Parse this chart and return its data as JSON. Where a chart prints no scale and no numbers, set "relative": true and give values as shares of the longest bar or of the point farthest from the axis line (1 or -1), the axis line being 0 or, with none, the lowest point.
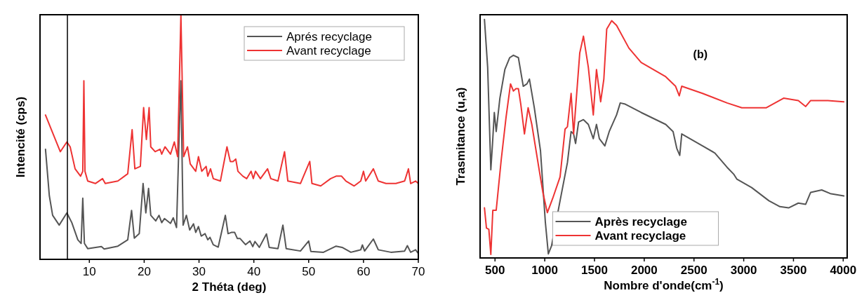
{
  "chart_data": [
    {
      "type": "line",
      "relative": true,
      "xlabel": "2 Théta (deg)",
      "ylabel": "Intencité (cps)",
      "xlim": [
        1,
        70
      ],
      "xticks": [
        10,
        20,
        30,
        40,
        50,
        60,
        70
      ],
      "legend": "top right",
      "grid": false,
      "ref_lines": [
        {
          "axis": "x",
          "value": 6,
          "color": "#000000"
        }
      ],
      "series": [
        {
          "name": "Aprés recyclage",
          "color": "#555555",
          "x": [
            2.0,
            2.7,
            3.3,
            4.5,
            5.9,
            6.8,
            7.9,
            8.5,
            8.8,
            9.1,
            9.7,
            12.2,
            12.7,
            15.2,
            17.0,
            17.7,
            18.2,
            19.1,
            19.8,
            20.3,
            20.8,
            21.2,
            22.1,
            22.7,
            23.2,
            23.7,
            24.8,
            25.3,
            25.9,
            26.5,
            26.7,
            27.1,
            27.7,
            28.3,
            29.0,
            29.4,
            29.9,
            30.4,
            31.1,
            31.6,
            32.0,
            32.6,
            33.5,
            34.8,
            35.3,
            35.9,
            36.5,
            37.0,
            37.5,
            38.5,
            39.3,
            39.8,
            40.2,
            41.0,
            42.3,
            42.8,
            44.4,
            45.3,
            45.9,
            48.5,
            50.0,
            50.4,
            52.7,
            55.0,
            56.1,
            57.7,
            59.5,
            59.8,
            60.2,
            61.8,
            62.7,
            65.0,
            67.5,
            68.0,
            68.6,
            69.5,
            70.0
          ],
          "values": [
            0.45,
            0.26,
            0.18,
            0.14,
            0.19,
            0.15,
            0.08,
            0.065,
            0.25,
            0.065,
            0.044,
            0.052,
            0.042,
            0.054,
            0.08,
            0.2,
            0.087,
            0.105,
            0.31,
            0.19,
            0.29,
            0.18,
            0.157,
            0.18,
            0.15,
            0.167,
            0.147,
            0.17,
            0.13,
            0.6,
            0.73,
            0.14,
            0.18,
            0.12,
            0.145,
            0.11,
            0.134,
            0.095,
            0.105,
            0.08,
            0.09,
            0.06,
            0.05,
            0.18,
            0.105,
            0.11,
            0.11,
            0.085,
            0.085,
            0.06,
            0.075,
            0.052,
            0.073,
            0.049,
            0.104,
            0.049,
            0.044,
            0.14,
            0.044,
            0.034,
            0.075,
            0.032,
            0.029,
            0.054,
            0.049,
            0.029,
            0.039,
            0.059,
            0.034,
            0.083,
            0.039,
            0.029,
            0.034,
            0.056,
            0.029,
            0.039,
            0.024
          ]
        },
        {
          "name": "Avant recyclage",
          "color": "#ee3333",
          "x": [
            2.0,
            2.9,
            4.7,
            5.9,
            6.5,
            7.4,
            8.4,
            8.8,
            9.0,
            9.2,
            9.7,
            11.1,
            12.4,
            12.9,
            15.2,
            17.0,
            17.8,
            18.3,
            19.3,
            19.9,
            20.4,
            20.9,
            21.2,
            22.0,
            22.9,
            23.2,
            23.8,
            24.8,
            25.5,
            26.1,
            26.7,
            27.2,
            27.9,
            28.4,
            29.4,
            29.9,
            30.5,
            31.3,
            31.6,
            32.1,
            32.6,
            33.9,
            35.1,
            35.7,
            36.2,
            36.7,
            37.1,
            38.0,
            38.7,
            39.5,
            39.9,
            40.3,
            41.2,
            42.5,
            43.1,
            44.4,
            45.6,
            46.2,
            48.5,
            50.2,
            50.6,
            52.2,
            54.0,
            55.0,
            56.0,
            56.8,
            58.3,
            59.5,
            60.0,
            60.4,
            61.8,
            62.7,
            64.1,
            65.9,
            67.5,
            68.2,
            68.6,
            69.5,
            70.0
          ],
          "values": [
            0.59,
            0.54,
            0.44,
            0.48,
            0.46,
            0.37,
            0.34,
            0.36,
            0.73,
            0.36,
            0.32,
            0.31,
            0.33,
            0.31,
            0.32,
            0.35,
            0.53,
            0.37,
            0.38,
            0.62,
            0.49,
            0.62,
            0.46,
            0.44,
            0.45,
            0.43,
            0.46,
            0.43,
            0.48,
            0.42,
            1.0,
            0.42,
            0.46,
            0.39,
            0.36,
            0.42,
            0.36,
            0.38,
            0.34,
            0.37,
            0.33,
            0.32,
            0.46,
            0.4,
            0.4,
            0.41,
            0.36,
            0.34,
            0.33,
            0.36,
            0.33,
            0.36,
            0.33,
            0.37,
            0.33,
            0.32,
            0.44,
            0.32,
            0.31,
            0.4,
            0.31,
            0.3,
            0.33,
            0.34,
            0.34,
            0.32,
            0.3,
            0.32,
            0.36,
            0.32,
            0.37,
            0.32,
            0.31,
            0.31,
            0.32,
            0.37,
            0.31,
            0.32,
            0.31
          ]
        }
      ]
    },
    {
      "type": "line",
      "relative": true,
      "xlabel": "Nombre d'onde(cm$^{-1}$)",
      "ylabel": "Trasmitance (u,a)",
      "xlim": [
        350,
        4040
      ],
      "xticks": [
        500,
        1000,
        1500,
        2000,
        2500,
        3000,
        3500,
        4000
      ],
      "legend": "bottom",
      "grid": false,
      "annotations": [
        "(b)"
      ],
      "series": [
        {
          "name": "Après recyclage",
          "color": "#555555",
          "x": [
            394,
            426,
            458,
            475,
            493,
            512,
            549,
            599,
            648,
            685,
            735,
            784,
            821,
            846,
            895,
            957,
            1006,
            1036,
            1068,
            1154,
            1228,
            1265,
            1290,
            1310,
            1340,
            1389,
            1438,
            1488,
            1520,
            1549,
            1604,
            1648,
            1722,
            1759,
            1809,
            1969,
            2216,
            2290,
            2327,
            2357,
            2377,
            2586,
            2710,
            2833,
            2902,
            2932,
            3080,
            3253,
            3364,
            3451,
            3549,
            3623,
            3673,
            3784,
            3870,
            4006
          ],
          "values": [
            1.0,
            0.8,
            0.37,
            0.48,
            0.61,
            0.53,
            0.67,
            0.79,
            0.84,
            0.85,
            0.84,
            0.72,
            0.73,
            0.75,
            0.63,
            0.45,
            0.15,
            0.017,
            0.05,
            0.24,
            0.4,
            0.53,
            0.52,
            0.48,
            0.57,
            0.58,
            0.56,
            0.5,
            0.56,
            0.5,
            0.47,
            0.53,
            0.6,
            0.65,
            0.645,
            0.61,
            0.56,
            0.53,
            0.46,
            0.43,
            0.52,
            0.47,
            0.44,
            0.38,
            0.35,
            0.33,
            0.295,
            0.24,
            0.215,
            0.21,
            0.23,
            0.225,
            0.275,
            0.285,
            0.27,
            0.26
          ]
        },
        {
          "name": "Avant recyclage",
          "color": "#ee3333",
          "x": [
            394,
            414,
            438,
            458,
            478,
            512,
            562,
            611,
            656,
            685,
            710,
            735,
            759,
            796,
            833,
            870,
            932,
            981,
            1026,
            1080,
            1154,
            1204,
            1228,
            1265,
            1290,
            1315,
            1352,
            1389,
            1438,
            1488,
            1520,
            1562,
            1594,
            1623,
            1673,
            1722,
            1846,
            1969,
            2216,
            2315,
            2352,
            2377,
            2586,
            2833,
            2981,
            3228,
            3401,
            3549,
            3623,
            3673,
            3846,
            4006
          ],
          "values": [
            0.21,
            0.125,
            0.12,
            0.015,
            0.2,
            0.2,
            0.41,
            0.59,
            0.73,
            0.7,
            0.71,
            0.71,
            0.645,
            0.52,
            0.63,
            0.56,
            0.4,
            0.275,
            0.19,
            0.25,
            0.34,
            0.54,
            0.55,
            0.69,
            0.52,
            0.655,
            0.86,
            0.93,
            0.8,
            0.6,
            0.79,
            0.655,
            0.75,
            0.96,
            0.995,
            0.975,
            0.88,
            0.82,
            0.76,
            0.72,
            0.68,
            0.72,
            0.69,
            0.65,
            0.63,
            0.63,
            0.67,
            0.66,
            0.635,
            0.66,
            0.66,
            0.655
          ]
        }
      ]
    }
  ]
}
